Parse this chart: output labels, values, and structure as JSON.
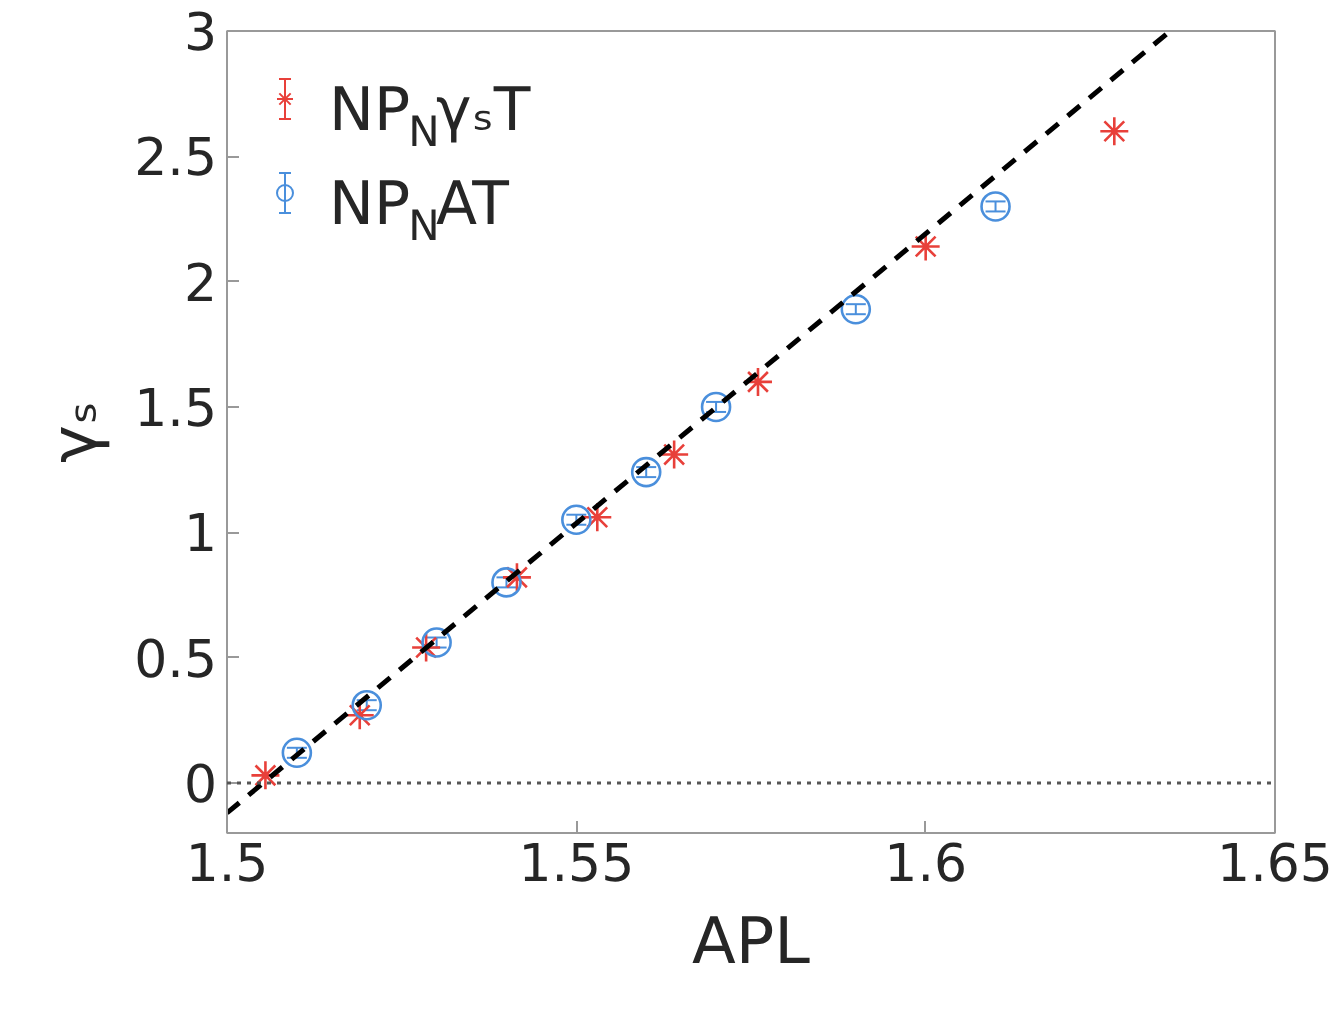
{
  "chart_data": {
    "type": "scatter",
    "xlabel": "APL",
    "ylabel": "γₛ",
    "xlim": [
      1.5,
      1.65
    ],
    "ylim": [
      -0.2,
      3
    ],
    "xticks": [
      1.5,
      1.55,
      1.6,
      1.65
    ],
    "yticks": [
      0,
      0.5,
      1,
      1.5,
      2,
      2.5,
      3
    ],
    "grid": false,
    "legend": "top left",
    "series": [
      {
        "name": "NP$_{N}$γₛT",
        "color": "#e8403a",
        "marker": "cross",
        "x": [
          1.5055,
          1.519,
          1.5285,
          1.5415,
          1.553,
          1.564,
          1.576,
          1.6,
          1.627
        ],
        "values": [
          0.03,
          0.27,
          0.54,
          0.82,
          1.06,
          1.31,
          1.6,
          2.14,
          2.6
        ]
      },
      {
        "name": "NP$_{N}$AT",
        "color": "#4a8fdc",
        "marker": "circle",
        "x": [
          1.51,
          1.52,
          1.53,
          1.54,
          1.55,
          1.56,
          1.57,
          1.59,
          1.61
        ],
        "values": [
          0.12,
          0.31,
          0.56,
          0.8,
          1.05,
          1.24,
          1.5,
          1.89,
          2.3
        ],
        "errors": [
          0.02,
          0.02,
          0.02,
          0.02,
          0.02,
          0.02,
          0.02,
          0.02,
          0.02
        ]
      },
      {
        "type": "line",
        "color": "#000000",
        "line_style": "dashed",
        "x": [
          1.5,
          1.635
        ],
        "values": [
          -0.12,
          3
        ]
      }
    ],
    "ref_lines": [
      {
        "axis": "y",
        "value": 0,
        "color": "#555555",
        "line_style": "dotted"
      }
    ]
  }
}
